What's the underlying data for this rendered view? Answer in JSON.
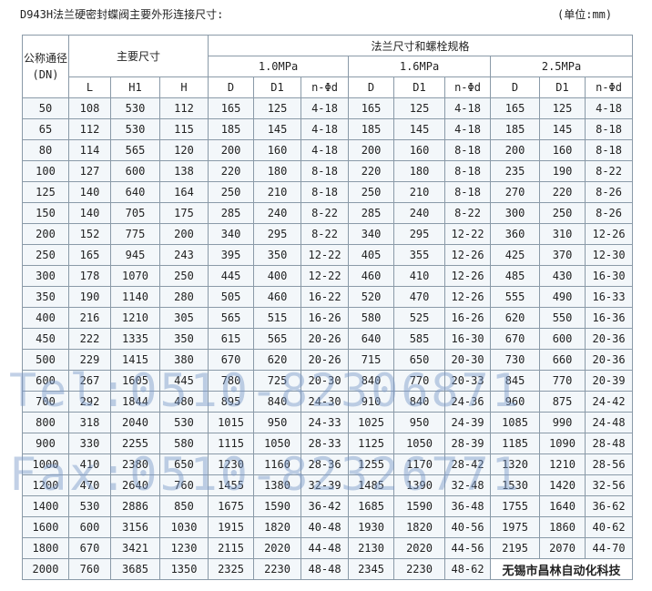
{
  "header": {
    "title": "D943H法兰硬密封蝶阀主要外形连接尺寸:",
    "unit": "(单位:mm)"
  },
  "table": {
    "dn_label": "公称通径(DN)",
    "main_label": "主要尺寸",
    "flange_label": "法兰尺寸和螺栓规格",
    "pressures": [
      "1.0MPa",
      "1.6MPa",
      "2.5MPa"
    ],
    "main_columns": [
      "L",
      "H1",
      "H"
    ],
    "flange_columns": [
      "D",
      "D1",
      "n-Φd"
    ],
    "rows": [
      [
        50,
        108,
        530,
        112,
        165,
        125,
        "4-18",
        165,
        125,
        "4-18",
        165,
        125,
        "4-18"
      ],
      [
        65,
        112,
        530,
        115,
        185,
        145,
        "4-18",
        185,
        145,
        "4-18",
        185,
        145,
        "8-18"
      ],
      [
        80,
        114,
        565,
        120,
        200,
        160,
        "4-18",
        200,
        160,
        "8-18",
        200,
        160,
        "8-18"
      ],
      [
        100,
        127,
        600,
        138,
        220,
        180,
        "8-18",
        220,
        180,
        "8-18",
        235,
        190,
        "8-22"
      ],
      [
        125,
        140,
        640,
        164,
        250,
        210,
        "8-18",
        250,
        210,
        "8-18",
        270,
        220,
        "8-26"
      ],
      [
        150,
        140,
        705,
        175,
        285,
        240,
        "8-22",
        285,
        240,
        "8-22",
        300,
        250,
        "8-26"
      ],
      [
        200,
        152,
        775,
        200,
        340,
        295,
        "8-22",
        340,
        295,
        "12-22",
        360,
        310,
        "12-26"
      ],
      [
        250,
        165,
        945,
        243,
        395,
        350,
        "12-22",
        405,
        355,
        "12-26",
        425,
        370,
        "12-30"
      ],
      [
        300,
        178,
        1070,
        250,
        445,
        400,
        "12-22",
        460,
        410,
        "12-26",
        485,
        430,
        "16-30"
      ],
      [
        350,
        190,
        1140,
        280,
        505,
        460,
        "16-22",
        520,
        470,
        "12-26",
        555,
        490,
        "16-33"
      ],
      [
        400,
        216,
        1210,
        305,
        565,
        515,
        "16-26",
        580,
        525,
        "16-26",
        620,
        550,
        "16-36"
      ],
      [
        450,
        222,
        1335,
        350,
        615,
        565,
        "20-26",
        640,
        585,
        "16-30",
        670,
        600,
        "20-36"
      ],
      [
        500,
        229,
        1415,
        380,
        670,
        620,
        "20-26",
        715,
        650,
        "20-30",
        730,
        660,
        "20-36"
      ],
      [
        600,
        267,
        1605,
        445,
        780,
        725,
        "20-30",
        840,
        770,
        "20-33",
        845,
        770,
        "20-39"
      ],
      [
        700,
        292,
        1844,
        480,
        895,
        840,
        "24-30",
        910,
        840,
        "24-36",
        960,
        875,
        "24-42"
      ],
      [
        800,
        318,
        2040,
        530,
        1015,
        950,
        "24-33",
        1025,
        950,
        "24-39",
        1085,
        990,
        "24-48"
      ],
      [
        900,
        330,
        2255,
        580,
        1115,
        1050,
        "28-33",
        1125,
        1050,
        "28-39",
        1185,
        1090,
        "28-48"
      ],
      [
        1000,
        410,
        2380,
        650,
        1230,
        1160,
        "28-36",
        1255,
        1170,
        "28-42",
        1320,
        1210,
        "28-56"
      ],
      [
        1200,
        470,
        2640,
        760,
        1455,
        1380,
        "32-39",
        1485,
        1390,
        "32-48",
        1530,
        1420,
        "32-56"
      ],
      [
        1400,
        530,
        2886,
        850,
        1675,
        1590,
        "36-42",
        1685,
        1590,
        "36-48",
        1755,
        1640,
        "36-62"
      ],
      [
        1600,
        600,
        3156,
        1030,
        1915,
        1820,
        "40-48",
        1930,
        1820,
        "40-56",
        1975,
        1860,
        "40-62"
      ],
      [
        1800,
        670,
        3421,
        1230,
        2115,
        2020,
        "44-48",
        2130,
        2020,
        "44-56",
        2195,
        2070,
        "44-70"
      ],
      [
        2000,
        760,
        3685,
        1350,
        2325,
        2230,
        "48-48",
        2345,
        2230,
        "48-62"
      ]
    ]
  },
  "watermarks": [
    "Tel:0510-82306871",
    "Fax:0510-82326771"
  ],
  "footer": "无锡市昌林自动化科技"
}
